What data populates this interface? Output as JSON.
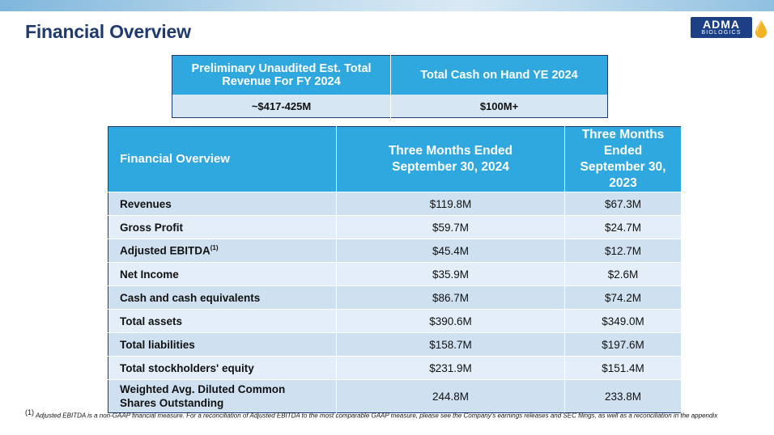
{
  "header": {
    "title": "Financial Overview",
    "logo_main": "ADMA",
    "logo_sub": "BIOLOGICS"
  },
  "summary_table": {
    "headers": [
      "Preliminary Unaudited Est. Total Revenue For FY 2024",
      "Total Cash on Hand YE 2024"
    ],
    "values": [
      "~$417-425M",
      "$100M+"
    ]
  },
  "overview_table": {
    "col_headers": [
      "Financial Overview",
      "Three Months Ended September 30, 2024",
      "Three Months Ended September 30, 2023"
    ],
    "rows": [
      {
        "label": "Revenues",
        "sup": "",
        "v2024": "$119.8M",
        "v2023": "$67.3M"
      },
      {
        "label": "Gross Profit",
        "sup": "",
        "v2024": "$59.7M",
        "v2023": "$24.7M"
      },
      {
        "label": "Adjusted EBITDA",
        "sup": "(1)",
        "v2024": "$45.4M",
        "v2023": "$12.7M"
      },
      {
        "label": "Net Income",
        "sup": "",
        "v2024": "$35.9M",
        "v2023": "$2.6M"
      },
      {
        "label": "Cash and cash equivalents",
        "sup": "",
        "v2024": "$86.7M",
        "v2023": "$74.2M"
      },
      {
        "label": "Total assets",
        "sup": "",
        "v2024": "$390.6M",
        "v2023": "$349.0M"
      },
      {
        "label": "Total liabilities",
        "sup": "",
        "v2024": "$158.7M",
        "v2023": "$197.6M"
      },
      {
        "label": "Total stockholders' equity",
        "sup": "",
        "v2024": "$231.9M",
        "v2023": "$151.4M"
      },
      {
        "label": "Weighted Avg. Diluted Common Shares Outstanding",
        "sup": "",
        "v2024": "244.8M",
        "v2023": "233.8M"
      }
    ]
  },
  "footnote": {
    "marker": "(1)",
    "text": "Adjusted EBITDA is a non-GAAP financial measure. For a reconciliation of Adjusted EBITDA to the most comparable GAAP measure, please see the Company's earnings releases and SEC filings, as well as a reconciliation in the appendix"
  },
  "colors": {
    "title": "#1f3a6e",
    "header_fill": "#2fa8df",
    "row_dark": "#cfe1f1",
    "row_light": "#e3eef8",
    "border": "#1f3a6e"
  }
}
